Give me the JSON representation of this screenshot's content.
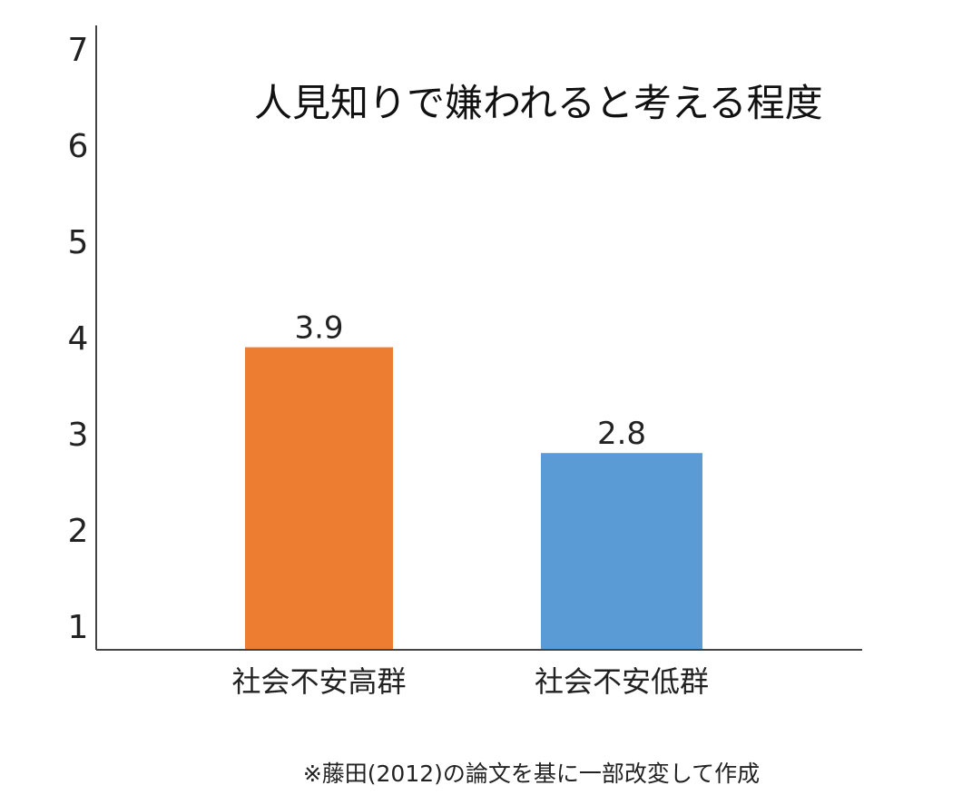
{
  "chart_data": {
    "type": "bar",
    "title": "人見知りで嫌われると考える程度",
    "categories": [
      "社会不安高群",
      "社会不安低群"
    ],
    "values": [
      3.9,
      2.8
    ],
    "value_labels": [
      "3.9",
      "2.8"
    ],
    "colors": [
      "#ED7D31",
      "#5B9BD5"
    ],
    "yticks": [
      1,
      2,
      3,
      4,
      5,
      6,
      7
    ],
    "ylim": [
      0.8,
      7.2
    ],
    "grid": false,
    "xlabel": "",
    "ylabel": ""
  },
  "footnote": "※藤田(2012)の論文を基に一部改変して作成"
}
